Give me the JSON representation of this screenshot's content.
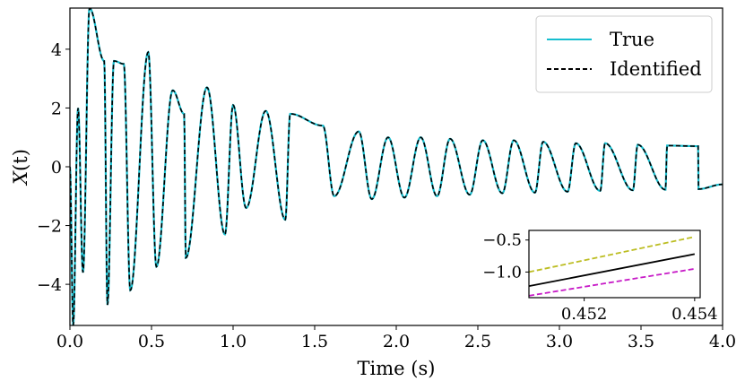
{
  "chart_data": {
    "type": "line",
    "title": "",
    "xlabel": "Time (s)",
    "ylabel": "X(t)",
    "xlim": [
      0.0,
      4.0
    ],
    "ylim": [
      -5.4,
      5.4
    ],
    "xticks": [
      "0.0",
      "0.5",
      "1.0",
      "1.5",
      "2.0",
      "2.5",
      "3.0",
      "3.5",
      "4.0"
    ],
    "yticks": [
      "−4",
      "−2",
      "0",
      "2",
      "4"
    ],
    "grid": false,
    "legend_position": "top-right",
    "series": [
      {
        "name": "True",
        "color": "#17becf",
        "style": "solid",
        "description": "decaying multi-frequency oscillation settling to ~5.3 Hz, amplitude ~0.7 after 2 s",
        "peaks": [
          [
            0.05,
            2.0
          ],
          [
            0.12,
            5.4
          ],
          [
            0.21,
            3.6
          ],
          [
            0.27,
            3.6
          ],
          [
            0.33,
            3.5
          ],
          [
            0.48,
            3.9
          ],
          [
            0.63,
            2.6
          ],
          [
            0.7,
            1.8
          ],
          [
            0.84,
            2.7
          ],
          [
            1.0,
            2.1
          ],
          [
            1.2,
            1.9
          ],
          [
            1.35,
            1.8
          ],
          [
            1.55,
            1.4
          ],
          [
            1.77,
            1.2
          ],
          [
            1.95,
            1.0
          ],
          [
            2.15,
            1.0
          ],
          [
            2.33,
            0.95
          ],
          [
            2.53,
            0.9
          ],
          [
            2.72,
            0.9
          ],
          [
            2.9,
            0.85
          ],
          [
            3.1,
            0.8
          ],
          [
            3.28,
            0.8
          ],
          [
            3.48,
            0.75
          ],
          [
            3.66,
            0.72
          ],
          [
            3.85,
            0.7
          ]
        ],
        "troughs": [
          [
            0.02,
            -5.4
          ],
          [
            0.08,
            -3.6
          ],
          [
            0.23,
            -4.7
          ],
          [
            0.37,
            -4.2
          ],
          [
            0.53,
            -3.4
          ],
          [
            0.71,
            -3.1
          ],
          [
            0.95,
            -2.3
          ],
          [
            1.08,
            -1.4
          ],
          [
            1.32,
            -1.8
          ],
          [
            1.62,
            -1.0
          ],
          [
            1.85,
            -1.1
          ],
          [
            2.05,
            -1.05
          ],
          [
            2.25,
            -1.0
          ],
          [
            2.45,
            -0.95
          ],
          [
            2.65,
            -0.9
          ],
          [
            2.85,
            -0.88
          ],
          [
            3.05,
            -0.85
          ],
          [
            3.25,
            -0.82
          ],
          [
            3.45,
            -0.8
          ],
          [
            3.65,
            -0.78
          ],
          [
            3.85,
            -0.76
          ],
          [
            4.0,
            -0.6
          ]
        ]
      },
      {
        "name": "Identified",
        "color": "#000000",
        "style": "dashed",
        "description": "identified model response, overlapping the true response"
      }
    ],
    "inset": {
      "xlim": [
        0.451,
        0.4541
      ],
      "ylim": [
        -1.4,
        -0.35
      ],
      "xticks": [
        "0.452",
        "0.454"
      ],
      "yticks": [
        "−0.5",
        "−1.0"
      ],
      "series": [
        {
          "name": "upper bound",
          "color": "#bcbd22",
          "style": "dashed",
          "x": [
            0.451,
            0.454
          ],
          "y": [
            -1.0,
            -0.45
          ]
        },
        {
          "name": "center",
          "color": "#000000",
          "style": "solid",
          "x": [
            0.451,
            0.454
          ],
          "y": [
            -1.22,
            -0.72
          ]
        },
        {
          "name": "lower bound",
          "color": "#c71bc7",
          "style": "dashed",
          "x": [
            0.451,
            0.454
          ],
          "y": [
            -1.37,
            -0.95
          ]
        }
      ]
    }
  },
  "legend": {
    "items": [
      {
        "label": "True",
        "color": "#17becf",
        "style": "solid"
      },
      {
        "label": "Identified",
        "color": "#000000",
        "style": "dashed"
      }
    ]
  }
}
